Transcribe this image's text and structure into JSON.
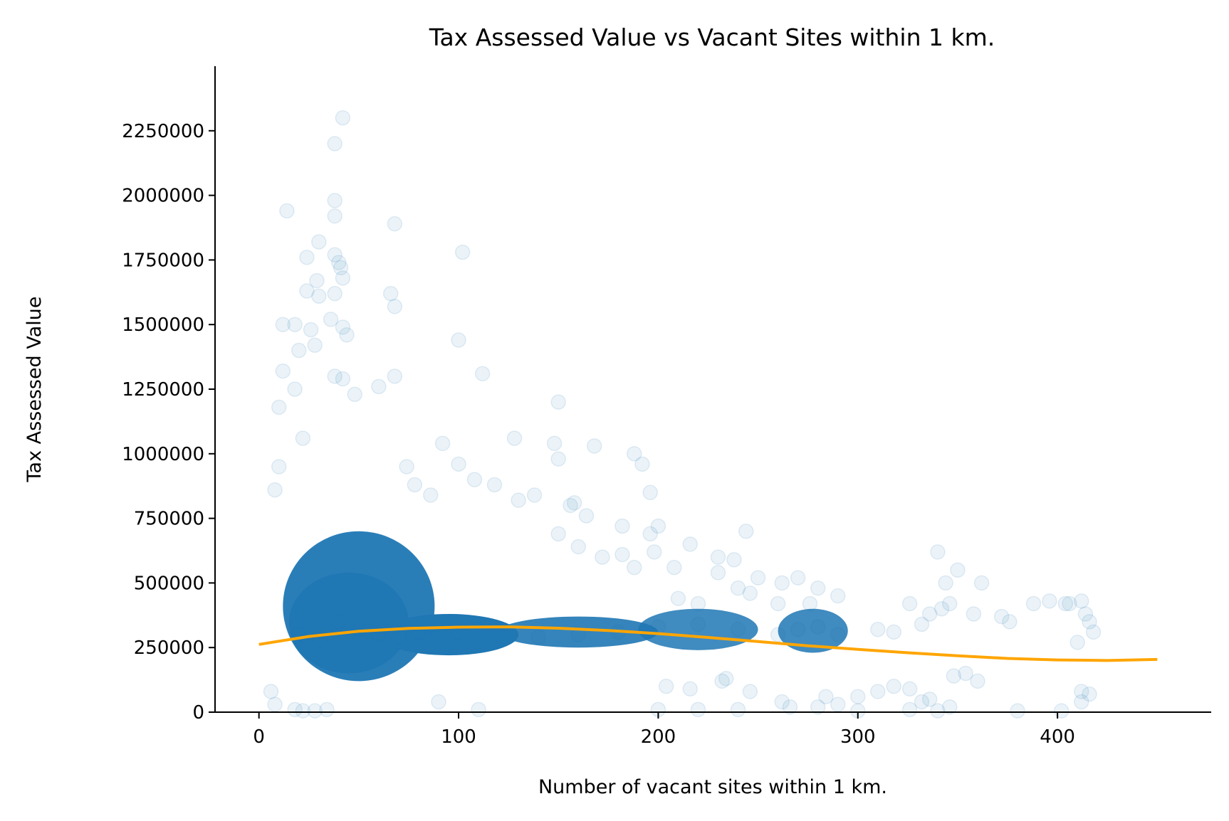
{
  "chart_data": {
    "type": "scatter",
    "title": "Tax Assessed Value vs Vacant Sites within 1 km.",
    "xlabel": "Number of vacant sites within 1 km.",
    "ylabel": "Tax Assessed Value",
    "xlim": [
      -22,
      477
    ],
    "ylim": [
      0,
      2500000
    ],
    "x_ticks": [
      0,
      100,
      200,
      300,
      400
    ],
    "y_ticks": [
      0,
      250000,
      500000,
      750000,
      1000000,
      1250000,
      1500000,
      1750000,
      2000000,
      2250000
    ],
    "grid": false,
    "legend": "none",
    "colors": {
      "points": "#1f77b4",
      "fit_line": "#ffa500",
      "axes": "#000000"
    },
    "series": [
      {
        "kind": "scatter",
        "points": [
          [
            42,
            2300000
          ],
          [
            38,
            2200000
          ],
          [
            14,
            1940000
          ],
          [
            38,
            1980000
          ],
          [
            38,
            1920000
          ],
          [
            68,
            1890000
          ],
          [
            102,
            1780000
          ],
          [
            30,
            1820000
          ],
          [
            24,
            1760000
          ],
          [
            38,
            1770000
          ],
          [
            40,
            1740000
          ],
          [
            41,
            1720000
          ],
          [
            42,
            1680000
          ],
          [
            29,
            1670000
          ],
          [
            24,
            1630000
          ],
          [
            30,
            1610000
          ],
          [
            38,
            1620000
          ],
          [
            66,
            1620000
          ],
          [
            68,
            1570000
          ],
          [
            36,
            1520000
          ],
          [
            12,
            1500000
          ],
          [
            18,
            1500000
          ],
          [
            26,
            1480000
          ],
          [
            42,
            1490000
          ],
          [
            44,
            1460000
          ],
          [
            100,
            1440000
          ],
          [
            28,
            1420000
          ],
          [
            20,
            1400000
          ],
          [
            112,
            1310000
          ],
          [
            12,
            1320000
          ],
          [
            38,
            1300000
          ],
          [
            42,
            1290000
          ],
          [
            68,
            1300000
          ],
          [
            60,
            1260000
          ],
          [
            150,
            1200000
          ],
          [
            18,
            1250000
          ],
          [
            10,
            1180000
          ],
          [
            48,
            1230000
          ],
          [
            22,
            1060000
          ],
          [
            128,
            1060000
          ],
          [
            92,
            1040000
          ],
          [
            148,
            1040000
          ],
          [
            100,
            960000
          ],
          [
            74,
            950000
          ],
          [
            150,
            980000
          ],
          [
            168,
            1030000
          ],
          [
            188,
            1000000
          ],
          [
            192,
            960000
          ],
          [
            8,
            860000
          ],
          [
            10,
            950000
          ],
          [
            78,
            880000
          ],
          [
            86,
            840000
          ],
          [
            108,
            900000
          ],
          [
            118,
            880000
          ],
          [
            130,
            820000
          ],
          [
            138,
            840000
          ],
          [
            156,
            800000
          ],
          [
            158,
            810000
          ],
          [
            196,
            850000
          ],
          [
            164,
            760000
          ],
          [
            182,
            720000
          ],
          [
            200,
            720000
          ],
          [
            216,
            650000
          ],
          [
            244,
            700000
          ],
          [
            150,
            690000
          ],
          [
            160,
            640000
          ],
          [
            172,
            600000
          ],
          [
            182,
            610000
          ],
          [
            188,
            560000
          ],
          [
            196,
            690000
          ],
          [
            198,
            620000
          ],
          [
            208,
            560000
          ],
          [
            230,
            600000
          ],
          [
            238,
            590000
          ],
          [
            250,
            520000
          ],
          [
            262,
            500000
          ],
          [
            270,
            520000
          ],
          [
            280,
            480000
          ],
          [
            230,
            540000
          ],
          [
            240,
            480000
          ],
          [
            246,
            460000
          ],
          [
            210,
            440000
          ],
          [
            220,
            420000
          ],
          [
            260,
            420000
          ],
          [
            276,
            420000
          ],
          [
            290,
            450000
          ],
          [
            310,
            320000
          ],
          [
            318,
            310000
          ],
          [
            326,
            420000
          ],
          [
            336,
            380000
          ],
          [
            340,
            620000
          ],
          [
            344,
            500000
          ],
          [
            350,
            550000
          ],
          [
            342,
            400000
          ],
          [
            346,
            420000
          ],
          [
            332,
            340000
          ],
          [
            358,
            380000
          ],
          [
            362,
            500000
          ],
          [
            372,
            370000
          ],
          [
            376,
            350000
          ],
          [
            388,
            420000
          ],
          [
            396,
            430000
          ],
          [
            406,
            420000
          ],
          [
            412,
            430000
          ],
          [
            414,
            380000
          ],
          [
            416,
            350000
          ],
          [
            418,
            310000
          ],
          [
            410,
            270000
          ],
          [
            404,
            420000
          ],
          [
            412,
            80000
          ],
          [
            416,
            70000
          ],
          [
            412,
            40000
          ],
          [
            332,
            40000
          ],
          [
            346,
            20000
          ],
          [
            326,
            10000
          ],
          [
            280,
            20000
          ],
          [
            290,
            30000
          ],
          [
            262,
            40000
          ],
          [
            266,
            20000
          ],
          [
            234,
            130000
          ],
          [
            232,
            120000
          ],
          [
            204,
            100000
          ],
          [
            216,
            90000
          ],
          [
            246,
            80000
          ],
          [
            284,
            60000
          ],
          [
            300,
            60000
          ],
          [
            310,
            80000
          ],
          [
            318,
            100000
          ],
          [
            326,
            90000
          ],
          [
            336,
            50000
          ],
          [
            348,
            140000
          ],
          [
            354,
            150000
          ],
          [
            360,
            120000
          ],
          [
            6,
            80000
          ],
          [
            8,
            30000
          ],
          [
            18,
            10000
          ],
          [
            22,
            5000
          ],
          [
            28,
            5000
          ],
          [
            34,
            10000
          ],
          [
            90,
            40000
          ],
          [
            110,
            10000
          ],
          [
            200,
            10000
          ],
          [
            220,
            10000
          ],
          [
            240,
            10000
          ],
          [
            300,
            5000
          ],
          [
            340,
            5000
          ],
          [
            380,
            5000
          ],
          [
            402,
            5000
          ],
          [
            20,
            300000
          ],
          [
            30,
            280000
          ],
          [
            40,
            350000
          ],
          [
            50,
            320000
          ],
          [
            60,
            300000
          ],
          [
            70,
            290000
          ],
          [
            80,
            310000
          ],
          [
            90,
            300000
          ],
          [
            100,
            310000
          ],
          [
            120,
            300000
          ],
          [
            140,
            290000
          ],
          [
            160,
            300000
          ],
          [
            180,
            310000
          ],
          [
            200,
            330000
          ],
          [
            220,
            340000
          ],
          [
            240,
            320000
          ],
          [
            260,
            300000
          ],
          [
            270,
            320000
          ],
          [
            280,
            330000
          ],
          [
            290,
            300000
          ]
        ]
      },
      {
        "kind": "line",
        "points": [
          [
            0,
            262000
          ],
          [
            25,
            293000
          ],
          [
            50,
            313000
          ],
          [
            75,
            324000
          ],
          [
            100,
            329000
          ],
          [
            125,
            330000
          ],
          [
            150,
            325000
          ],
          [
            175,
            316000
          ],
          [
            200,
            304000
          ],
          [
            225,
            289000
          ],
          [
            250,
            273000
          ],
          [
            275,
            257000
          ],
          [
            300,
            243000
          ],
          [
            325,
            230000
          ],
          [
            350,
            218000
          ],
          [
            375,
            208000
          ],
          [
            400,
            202000
          ],
          [
            425,
            200000
          ],
          [
            450,
            204000
          ]
        ]
      }
    ]
  }
}
